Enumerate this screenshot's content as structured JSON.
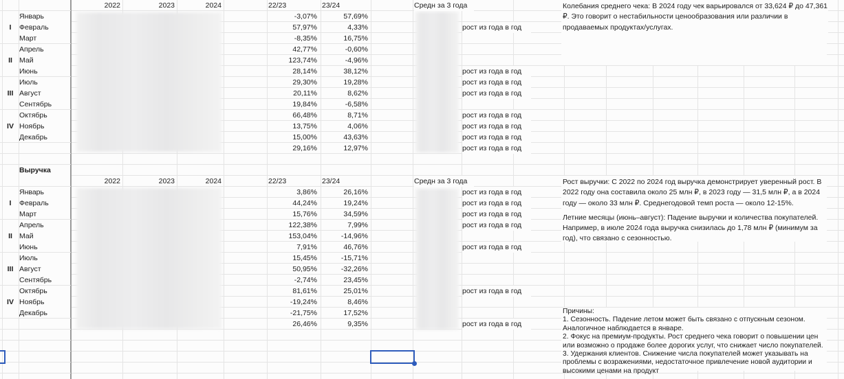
{
  "labels": {
    "growth_note": "рост из года в год"
  },
  "column_headers": {
    "y2022": "2022",
    "y2023": "2023",
    "y2024": "2024",
    "ratio_22_23": "22/23",
    "ratio_23_24": "23/24",
    "avg_3_years": "Средн за 3 года"
  },
  "tables": [
    {
      "title": "",
      "rows": [
        {
          "quarter": "",
          "month": "Январь",
          "v2223": "-3,07%",
          "v2324": "57,69%",
          "growth": false
        },
        {
          "quarter": "I",
          "month": "Февраль",
          "v2223": "57,97%",
          "v2324": "4,33%",
          "growth": true
        },
        {
          "quarter": "",
          "month": "Март",
          "v2223": "-8,35%",
          "v2324": "16,75%",
          "growth": false
        },
        {
          "quarter": "",
          "month": "Апрель",
          "v2223": "42,77%",
          "v2324": "-0,60%",
          "growth": false
        },
        {
          "quarter": "II",
          "month": "Май",
          "v2223": "123,74%",
          "v2324": "-4,96%",
          "growth": false
        },
        {
          "quarter": "",
          "month": "Июнь",
          "v2223": "28,14%",
          "v2324": "38,12%",
          "growth": true
        },
        {
          "quarter": "",
          "month": "Июль",
          "v2223": "29,30%",
          "v2324": "19,28%",
          "growth": true
        },
        {
          "quarter": "III",
          "month": "Август",
          "v2223": "20,11%",
          "v2324": "8,62%",
          "growth": true
        },
        {
          "quarter": "",
          "month": "Сентябрь",
          "v2223": "19,84%",
          "v2324": "-6,58%",
          "growth": false
        },
        {
          "quarter": "",
          "month": "Октябрь",
          "v2223": "66,48%",
          "v2324": "8,71%",
          "growth": true
        },
        {
          "quarter": "IV",
          "month": "Ноябрь",
          "v2223": "13,75%",
          "v2324": "4,06%",
          "growth": true
        },
        {
          "quarter": "",
          "month": "Декабрь",
          "v2223": "15,00%",
          "v2324": "43,63%",
          "growth": true
        },
        {
          "quarter": "",
          "month": "",
          "v2223": "29,16%",
          "v2324": "12,97%",
          "growth": true
        }
      ]
    },
    {
      "title": "Выручка",
      "rows": [
        {
          "quarter": "",
          "month": "Январь",
          "v2223": "3,86%",
          "v2324": "26,16%",
          "growth": true
        },
        {
          "quarter": "I",
          "month": "Февраль",
          "v2223": "44,24%",
          "v2324": "19,24%",
          "growth": true
        },
        {
          "quarter": "",
          "month": "Март",
          "v2223": "15,76%",
          "v2324": "34,59%",
          "growth": true
        },
        {
          "quarter": "",
          "month": "Апрель",
          "v2223": "122,38%",
          "v2324": "7,99%",
          "growth": true
        },
        {
          "quarter": "II",
          "month": "Май",
          "v2223": "153,04%",
          "v2324": "-14,96%",
          "growth": false
        },
        {
          "quarter": "",
          "month": "Июнь",
          "v2223": "7,91%",
          "v2324": "46,76%",
          "growth": true
        },
        {
          "quarter": "",
          "month": "Июль",
          "v2223": "15,45%",
          "v2324": "-15,71%",
          "growth": false
        },
        {
          "quarter": "III",
          "month": "Август",
          "v2223": "50,95%",
          "v2324": "-32,26%",
          "growth": false
        },
        {
          "quarter": "",
          "month": "Сентябрь",
          "v2223": "-2,74%",
          "v2324": "23,45%",
          "growth": false
        },
        {
          "quarter": "",
          "month": "Октябрь",
          "v2223": "81,61%",
          "v2324": "25,01%",
          "growth": true
        },
        {
          "quarter": "IV",
          "month": "Ноябрь",
          "v2223": "-19,24%",
          "v2324": "8,46%",
          "growth": false
        },
        {
          "quarter": "",
          "month": "Декабрь",
          "v2223": "-21,75%",
          "v2324": "17,52%",
          "growth": false
        },
        {
          "quarter": "",
          "month": "",
          "v2223": "26,46%",
          "v2324": "9,35%",
          "growth": true
        }
      ]
    }
  ],
  "commentary": {
    "average_check": [
      "Колебания среднего чека: В 2024 году чек варьировался от 33,624 ₽ до 47,361 ₽. Это говорит о нестабильности ценообразования или различии в продаваемых продуктах/услугах."
    ],
    "revenue": [
      "Рост выручки: С 2022 по 2024 год выручка демонстрирует уверенный рост. В 2022 году она составила около 25 млн ₽, в 2023 году — 31,5 млн ₽, а в 2024 году — около 33 млн ₽. Среднегодовой темп роста — около 12-15%.",
      "Летние месяцы (июнь–август): Падение выручки и количества покупателей. Например, в июле 2024 года выручка снизилась до 1,78 млн ₽ (минимум за год), что связано с сезонностью."
    ],
    "reasons": [
      "Причины:",
      "1. Сезонность. Падение летом может быть связано с отпускным сезоном. Аналогичное наблюдается в январе.",
      "2. Фокус на премиум-продукты. Рост среднего чека говорит о повышении цен или возможно о продаже более дорогих услуг, что снижает число покупателей.",
      "3. Удержания клиентов. Снижение числа покупателей может указывать на проблемы с возражениями,  недостаточное привлечение новой аудитории и высокими ценами на продукт"
    ]
  },
  "colors": {
    "selection_blue": "#2e5cbc",
    "gridline": "#e4e4e4",
    "frozen_divider": "#9a9a9a"
  }
}
